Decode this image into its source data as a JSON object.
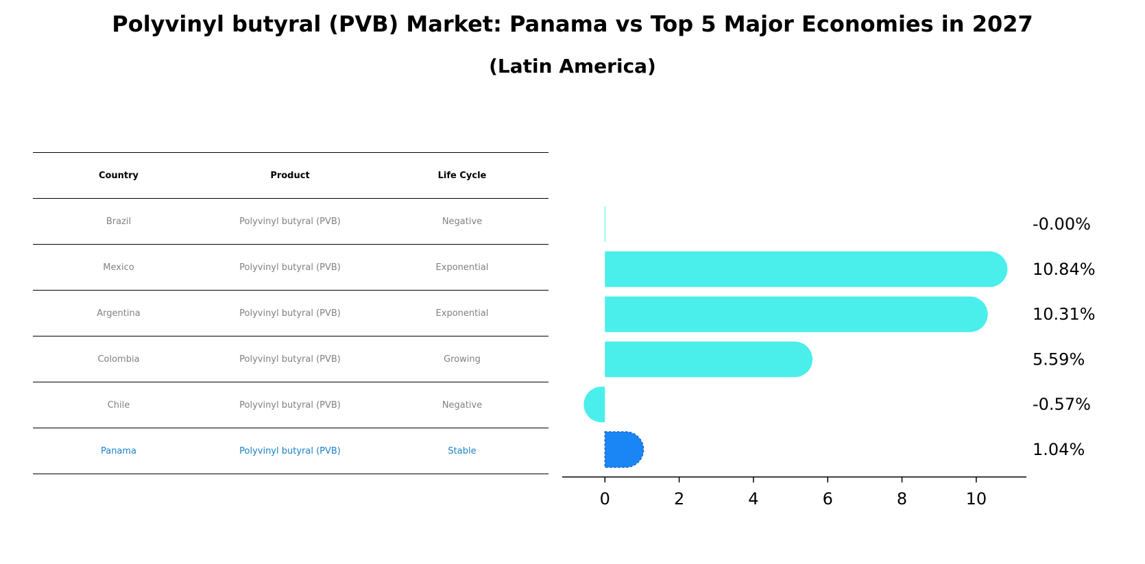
{
  "title": "Polyvinyl butyral (PVB) Market: Panama vs Top 5 Major Economies in 2027",
  "subtitle": "(Latin America)",
  "table": {
    "headers": [
      "Country",
      "Product",
      "Life Cycle"
    ],
    "rows": [
      {
        "country": "Brazil",
        "product": "Polyvinyl butyral (PVB)",
        "life_cycle": "Negative"
      },
      {
        "country": "Mexico",
        "product": "Polyvinyl butyral (PVB)",
        "life_cycle": "Exponential"
      },
      {
        "country": "Argentina",
        "product": "Polyvinyl butyral (PVB)",
        "life_cycle": "Exponential"
      },
      {
        "country": "Colombia",
        "product": "Polyvinyl butyral (PVB)",
        "life_cycle": "Growing"
      },
      {
        "country": "Chile",
        "product": "Polyvinyl butyral (PVB)",
        "life_cycle": "Negative"
      },
      {
        "country": "Panama",
        "product": "Polyvinyl butyral (PVB)",
        "life_cycle": "Stable"
      }
    ]
  },
  "chart_data": {
    "type": "bar",
    "orientation": "horizontal",
    "categories": [
      "Brazil",
      "Mexico",
      "Argentina",
      "Colombia",
      "Chile",
      "Panama"
    ],
    "values": [
      -0.0,
      10.84,
      10.31,
      5.59,
      -0.57,
      1.04
    ],
    "value_labels": [
      "-0.00%",
      "10.84%",
      "10.31%",
      "5.59%",
      "-0.57%",
      "1.04%"
    ],
    "xlim": [
      -1.15,
      11.35
    ],
    "xticks": [
      0,
      2,
      4,
      6,
      8,
      10
    ],
    "highlight_category": "Panama",
    "colors": {
      "default": "#4aeeea",
      "highlight": "#1a85f5"
    },
    "grid": false
  },
  "colors": {
    "text_muted": "#808080",
    "highlight_text": "#1a80c8"
  }
}
